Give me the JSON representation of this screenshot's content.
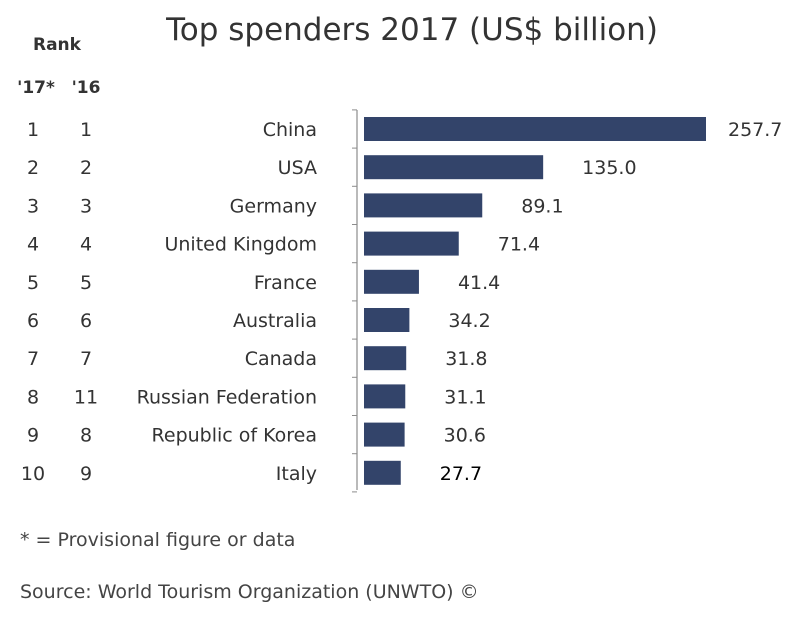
{
  "chart_data": {
    "type": "bar",
    "orientation": "horizontal",
    "title": "Top spenders 2017 (US$ billion)",
    "rank_header": "Rank",
    "rank_columns": [
      "'17*",
      "'16"
    ],
    "categories": [
      "China",
      "USA",
      "Germany",
      "United Kingdom",
      "France",
      "Australia",
      "Canada",
      "Russian Federation",
      "Republic of Korea",
      "Italy"
    ],
    "values": [
      257.7,
      135.0,
      89.1,
      71.4,
      41.4,
      34.2,
      31.8,
      31.1,
      30.6,
      27.7
    ],
    "value_labels": [
      "257.7",
      "135.0",
      "89.1",
      "71.4",
      "41.4",
      "34.2",
      "31.8",
      "31.1",
      "30.6",
      "27.7"
    ],
    "rank_2017": [
      "1",
      "2",
      "3",
      "4",
      "5",
      "6",
      "7",
      "8",
      "9",
      "10"
    ],
    "rank_2016": [
      "1",
      "2",
      "3",
      "4",
      "5",
      "6",
      "7",
      "11",
      "8",
      "9"
    ],
    "xlim": [
      0,
      257.7
    ],
    "grid": false,
    "colors": {
      "bar": "#33446a",
      "axis": "#8c8c8c"
    }
  },
  "footnote": "* = Provisional figure or data",
  "source": "Source: World Tourism Organization (UNWTO) ©"
}
